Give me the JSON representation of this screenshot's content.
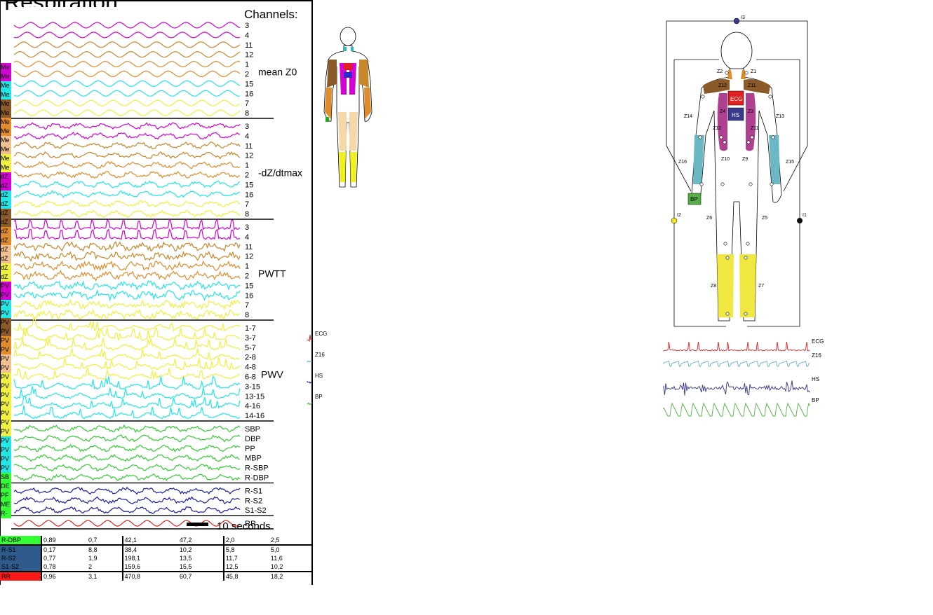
{
  "title_partial": "Respiration",
  "channels_title": "Channels:",
  "groups": [
    {
      "label": "mean Z0",
      "channels": [
        "3",
        "4",
        "11",
        "12",
        "1",
        "2",
        "15",
        "16",
        "7",
        "8"
      ],
      "colors": [
        "#d400d4",
        "#d400d4",
        "#c8862a",
        "#c8862a",
        "#e08c2a",
        "#e08c2a",
        "#22e6e6",
        "#22e6e6",
        "#f0f040",
        "#f0f040"
      ]
    },
    {
      "label": "-dZ/dtmax",
      "channels": [
        "3",
        "4",
        "11",
        "12",
        "1",
        "2",
        "15",
        "16",
        "7",
        "8"
      ],
      "colors": [
        "#d400d4",
        "#d400d4",
        "#c8862a",
        "#c8862a",
        "#e08c2a",
        "#e08c2a",
        "#22e6e6",
        "#22e6e6",
        "#f0f040",
        "#f0f040"
      ]
    },
    {
      "label": "PWTT",
      "channels": [
        "3",
        "4",
        "11",
        "12",
        "1",
        "2",
        "15",
        "16",
        "7",
        "8"
      ],
      "colors": [
        "#d400d4",
        "#d400d4",
        "#c8862a",
        "#c8862a",
        "#e08c2a",
        "#e08c2a",
        "#22e6e6",
        "#22e6e6",
        "#f0f040",
        "#f0f040"
      ]
    },
    {
      "label": "PWV",
      "channels": [
        "1-7",
        "3-7",
        "5-7",
        "2-8",
        "4-8",
        "6-8",
        "3-15",
        "13-15",
        "4-16",
        "14-16"
      ],
      "colors": [
        "#f0f040",
        "#f0f040",
        "#f0f040",
        "#f0f040",
        "#f0f040",
        "#f0f040",
        "#22e6e6",
        "#22e6e6",
        "#22e6e6",
        "#22e6e6"
      ]
    },
    {
      "label": "",
      "channels": [
        "SBP",
        "DBP",
        "PP",
        "MBP",
        "R-SBP",
        "R-DBP"
      ],
      "colors": [
        "#33cc33",
        "#33cc33",
        "#33cc33",
        "#33cc33",
        "#33cc33",
        "#33cc33"
      ]
    },
    {
      "label": "",
      "channels": [
        "R-S1",
        "R-S2",
        "S1-S2"
      ],
      "colors": [
        "#1a1aa6",
        "#1a1aa6",
        "#1a1aa6"
      ]
    },
    {
      "label": "",
      "channels": [
        "RR"
      ],
      "colors": [
        "#e02020"
      ]
    }
  ],
  "scale_bar_label": "10 seconds",
  "left_swatches": [
    {
      "text": "Me",
      "color": "#d400d4"
    },
    {
      "text": "Me",
      "color": "#d400d4"
    },
    {
      "text": "Me",
      "color": "#22e6e6"
    },
    {
      "text": "Me",
      "color": "#22e6e6"
    },
    {
      "text": "Me",
      "color": "#8b5a2b"
    },
    {
      "text": "Me",
      "color": "#8b5a2b"
    },
    {
      "text": "Me",
      "color": "#e08c2a"
    },
    {
      "text": "Me",
      "color": "#e08c2a"
    },
    {
      "text": "Me",
      "color": "#f0c090"
    },
    {
      "text": "Me",
      "color": "#f0c090"
    },
    {
      "text": "Me",
      "color": "#f0f040"
    },
    {
      "text": "Me",
      "color": "#f0f040"
    },
    {
      "text": "dZ",
      "color": "#d400d4"
    },
    {
      "text": "dZ",
      "color": "#d400d4"
    },
    {
      "text": "dZ",
      "color": "#22e6e6"
    },
    {
      "text": "dZ",
      "color": "#22e6e6"
    },
    {
      "text": "dZ",
      "color": "#8b5a2b"
    },
    {
      "text": "dZ",
      "color": "#8b5a2b"
    },
    {
      "text": "dZ",
      "color": "#e08c2a"
    },
    {
      "text": "dZ",
      "color": "#e08c2a"
    },
    {
      "text": "dZ",
      "color": "#f0c090"
    },
    {
      "text": "dZ",
      "color": "#f0c090"
    },
    {
      "text": "dZ",
      "color": "#f0f040"
    },
    {
      "text": "dZ",
      "color": "#f0f040"
    },
    {
      "text": "PV",
      "color": "#d400d4"
    },
    {
      "text": "PV",
      "color": "#d400d4"
    },
    {
      "text": "PV",
      "color": "#22e6e6"
    },
    {
      "text": "PV",
      "color": "#22e6e6"
    },
    {
      "text": "PV",
      "color": "#8b5a2b"
    },
    {
      "text": "PV",
      "color": "#8b5a2b"
    },
    {
      "text": "PV",
      "color": "#e08c2a"
    },
    {
      "text": "PV",
      "color": "#e08c2a"
    },
    {
      "text": "PV",
      "color": "#f0c090"
    },
    {
      "text": "PV",
      "color": "#f0c090"
    },
    {
      "text": "PV",
      "color": "#f0f040"
    },
    {
      "text": "PV",
      "color": "#f0f040"
    },
    {
      "text": "PV",
      "color": "#f0f040"
    },
    {
      "text": "PV",
      "color": "#f0f040"
    },
    {
      "text": "PV",
      "color": "#f0f040"
    },
    {
      "text": "PV",
      "color": "#f0f040"
    },
    {
      "text": "PV",
      "color": "#f0f040"
    },
    {
      "text": "PV",
      "color": "#22e6e6"
    },
    {
      "text": "PV",
      "color": "#22e6e6"
    },
    {
      "text": "PV",
      "color": "#22e6e6"
    },
    {
      "text": "PV",
      "color": "#22e6e6"
    },
    {
      "text": "SB",
      "color": "#33ff33"
    },
    {
      "text": "DE",
      "color": "#33ff33"
    },
    {
      "text": "PF",
      "color": "#33ff33"
    },
    {
      "text": "ME",
      "color": "#33ff33"
    },
    {
      "text": "R-",
      "color": "#33ff33"
    }
  ],
  "table_rows": [
    {
      "name": "R-DBP",
      "color": "#33ff33",
      "cells": [
        "0,89",
        "0,7",
        "42,1",
        "47,2",
        "2,0",
        "2,5"
      ]
    },
    {
      "name": "R-S1",
      "color": "#2f5a8c",
      "cells": [
        "0,17",
        "8,8",
        "38,4",
        "10,2",
        "5,8",
        "5,0"
      ]
    },
    {
      "name": "R-S2",
      "color": "#2f5a8c",
      "cells": [
        "0,77",
        "1,9",
        "198,1",
        "13,5",
        "11,7",
        "11,6"
      ]
    },
    {
      "name": "S1-S2",
      "color": "#2f5a8c",
      "cells": [
        "0,78",
        "2",
        "159,6",
        "15,5",
        "12,5",
        "10,2"
      ]
    },
    {
      "name": "RR",
      "color": "#ff1a1a",
      "cells": [
        "0,96",
        "3,1",
        "470,8",
        "60,7",
        "45,8",
        "18,2"
      ]
    }
  ],
  "small_figure": {
    "signal_labels": [
      "ECG",
      "Z16",
      "HS",
      "BP"
    ],
    "signal_colors": [
      "#d62020",
      "#6aaec0",
      "#33338a",
      "#55b044"
    ]
  },
  "big_figure": {
    "box_labels": {
      "ecg": "ECG",
      "hs": "HS",
      "bp": "BP"
    },
    "current_labels": [
      "I3",
      "I2",
      "I1"
    ],
    "z_labels": [
      "Z2",
      "Z1",
      "Z12",
      "Z11",
      "Z14",
      "Z13",
      "Z4",
      "Z3",
      "Z10",
      "Z9",
      "Z16",
      "Z15",
      "Z6",
      "Z5",
      "Z8",
      "Z7",
      "Z12",
      "Z11"
    ],
    "signal_labels": [
      "ECG",
      "Z16",
      "HS",
      "BP"
    ],
    "signal_colors": [
      "#d62020",
      "#6aaec0",
      "#33338a",
      "#55b044"
    ]
  }
}
